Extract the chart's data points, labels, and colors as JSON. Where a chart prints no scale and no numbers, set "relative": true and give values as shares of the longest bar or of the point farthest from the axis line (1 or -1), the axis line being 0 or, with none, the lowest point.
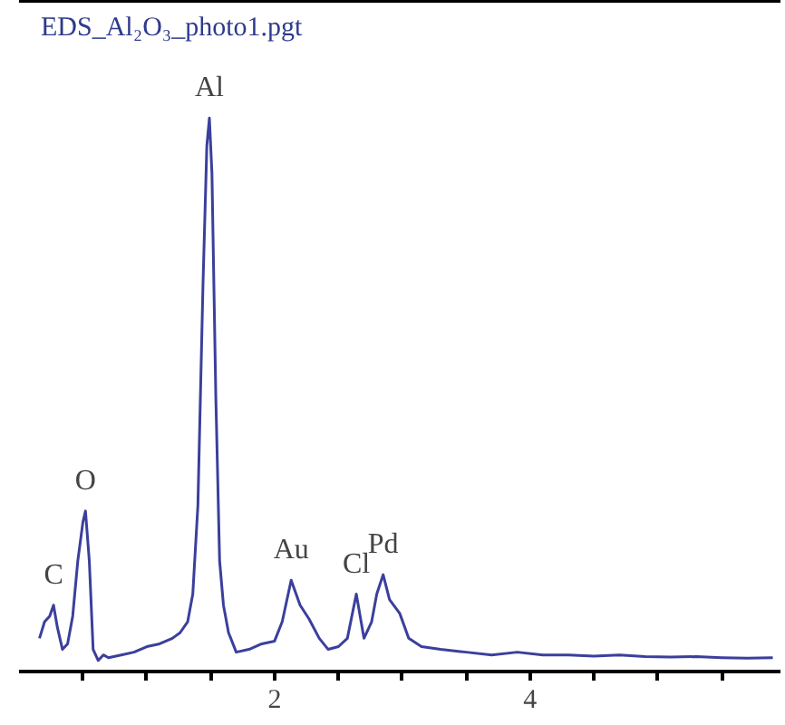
{
  "chart_data": {
    "type": "line",
    "title": "EDS_Al₂O₃_photo1.pgt",
    "relative": true,
    "xlim": [
      0,
      5.96
    ],
    "xticks": [
      {
        "value": 0.5,
        "label": null
      },
      {
        "value": 1,
        "label": null
      },
      {
        "value": 1.5,
        "label": null
      },
      2,
      {
        "value": 2.5,
        "label": null
      },
      {
        "value": 3,
        "label": null
      },
      {
        "value": 3.5,
        "label": null
      },
      4,
      {
        "value": 4.5,
        "label": null
      },
      {
        "value": 5,
        "label": null
      },
      {
        "value": 5.5,
        "label": null
      }
    ],
    "series": [
      {
        "color": "#3b3f9c",
        "x": [
          0.16,
          0.2,
          0.24,
          0.27,
          0.3,
          0.34,
          0.38,
          0.42,
          0.46,
          0.5,
          0.52,
          0.55,
          0.58,
          0.62,
          0.66,
          0.7,
          0.8,
          0.9,
          1.0,
          1.1,
          1.2,
          1.26,
          1.32,
          1.36,
          1.4,
          1.44,
          1.47,
          1.49,
          1.51,
          1.54,
          1.57,
          1.6,
          1.64,
          1.7,
          1.8,
          1.9,
          2.0,
          2.06,
          2.13,
          2.2,
          2.27,
          2.35,
          2.42,
          2.5,
          2.57,
          2.64,
          2.7,
          2.76,
          2.8,
          2.85,
          2.9,
          2.98,
          3.05,
          3.15,
          3.3,
          3.5,
          3.7,
          3.9,
          4.1,
          4.3,
          4.5,
          4.7,
          4.9,
          5.1,
          5.3,
          5.5,
          5.7,
          5.9
        ],
        "values": [
          0.06,
          0.09,
          0.1,
          0.12,
          0.08,
          0.04,
          0.05,
          0.1,
          0.2,
          0.27,
          0.29,
          0.2,
          0.04,
          0.02,
          0.03,
          0.025,
          0.03,
          0.035,
          0.045,
          0.05,
          0.06,
          0.07,
          0.09,
          0.14,
          0.3,
          0.7,
          0.95,
          1.0,
          0.9,
          0.5,
          0.2,
          0.12,
          0.07,
          0.035,
          0.04,
          0.05,
          0.055,
          0.09,
          0.165,
          0.12,
          0.095,
          0.06,
          0.04,
          0.045,
          0.06,
          0.14,
          0.06,
          0.09,
          0.14,
          0.175,
          0.13,
          0.105,
          0.06,
          0.045,
          0.04,
          0.035,
          0.03,
          0.035,
          0.03,
          0.03,
          0.028,
          0.03,
          0.027,
          0.026,
          0.027,
          0.025,
          0.024,
          0.025
        ]
      }
    ],
    "annotations": [
      {
        "text": "C",
        "x": 0.27,
        "y": 0.12
      },
      {
        "text": "O",
        "x": 0.52,
        "y": 0.29
      },
      {
        "text": "Al",
        "x": 1.49,
        "y": 1.0
      },
      {
        "text": "Au",
        "x": 2.13,
        "y": 0.165
      },
      {
        "text": "Cl",
        "x": 2.64,
        "y": 0.14
      },
      {
        "text": "Pd",
        "x": 2.85,
        "y": 0.175
      }
    ]
  }
}
